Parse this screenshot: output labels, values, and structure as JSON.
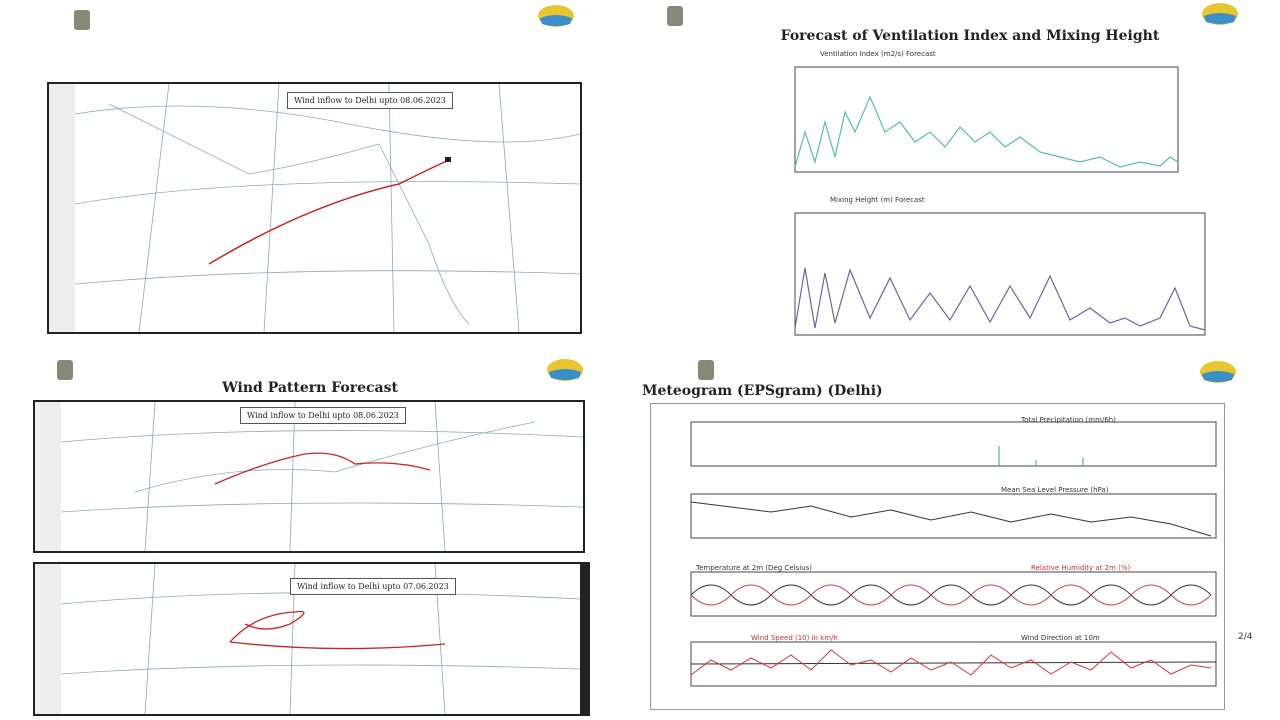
{
  "top_right": {
    "title": "Forecast of Ventilation Index and Mixing Height",
    "chart1_title": "Ventilation Index (m2/s) Forecast",
    "chart2_title": "Mixing Height (m) Forecast"
  },
  "top_left": {
    "caption": "Wind inflow to Delhi upto 08.06.2023"
  },
  "bottom_left": {
    "title": "Wind Pattern Forecast",
    "caption1": "Wind inflow to Delhi upto 08.06.2023",
    "caption2": "Wind inflow to Delhi upto 07.06.2023"
  },
  "bottom_right": {
    "title": "Meteogram (EPSgram) (Delhi)",
    "plot1": "Total Precipitation (mm/6h)",
    "plot2": "Mean Sea Level Pressure (hPa)",
    "plot3a": "Temperature at 2m (Deg Celsius)",
    "plot3b": "Relative Humidity at 2m (%)",
    "plot4a": "Wind Speed (10) in km/h",
    "plot4b": "Wind Direction at 10m"
  },
  "page_indicator": "2/4"
}
